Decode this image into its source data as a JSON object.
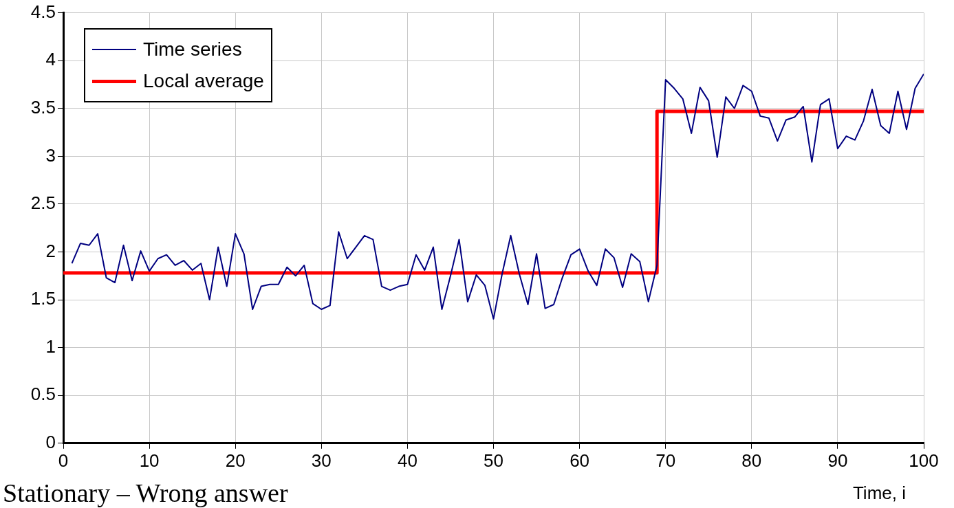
{
  "chart_data": {
    "type": "line",
    "xlabel": "Time, i",
    "annotations": [
      "Stationary – Wrong answer"
    ],
    "xlim": [
      0,
      100
    ],
    "xticks": [
      0,
      10,
      20,
      30,
      40,
      50,
      60,
      70,
      80,
      90,
      100
    ],
    "ylim": [
      0,
      4.5
    ],
    "yticks": [
      0,
      0.5,
      1,
      1.5,
      2,
      2.5,
      3,
      3.5,
      4,
      4.5
    ],
    "grid": true,
    "legend": "top left",
    "marker": "none",
    "line_style": "solid",
    "series": [
      {
        "name": "Time series",
        "color": "#000080",
        "type": "line",
        "x": [
          1,
          2,
          3,
          4,
          5,
          6,
          7,
          8,
          9,
          10,
          11,
          12,
          13,
          14,
          15,
          16,
          17,
          18,
          19,
          20,
          21,
          22,
          23,
          24,
          25,
          26,
          27,
          28,
          29,
          30,
          31,
          32,
          33,
          34,
          35,
          36,
          37,
          38,
          39,
          40,
          41,
          42,
          43,
          44,
          45,
          46,
          47,
          48,
          49,
          50,
          51,
          52,
          53,
          54,
          55,
          56,
          57,
          58,
          59,
          60,
          61,
          62,
          63,
          64,
          65,
          66,
          67,
          68,
          69,
          70,
          71,
          72,
          73,
          74,
          75,
          76,
          77,
          78,
          79,
          80,
          81,
          82,
          83,
          84,
          85,
          86,
          87,
          88,
          89,
          90,
          91,
          92,
          93,
          94,
          95,
          96,
          97,
          98,
          99,
          100
        ],
        "values": [
          1.88,
          2.09,
          2.07,
          2.19,
          1.73,
          1.68,
          2.07,
          1.7,
          2.01,
          1.8,
          1.93,
          1.97,
          1.86,
          1.91,
          1.81,
          1.88,
          1.5,
          2.05,
          1.64,
          2.19,
          1.98,
          1.4,
          1.64,
          1.66,
          1.66,
          1.84,
          1.75,
          1.86,
          1.46,
          1.4,
          1.44,
          2.21,
          1.93,
          2.05,
          2.17,
          2.13,
          1.64,
          1.6,
          1.64,
          1.66,
          1.97,
          1.81,
          2.05,
          1.4,
          1.75,
          2.13,
          1.48,
          1.76,
          1.65,
          1.3,
          1.77,
          2.17,
          1.77,
          1.45,
          1.98,
          1.41,
          1.45,
          1.73,
          1.97,
          2.03,
          1.8,
          1.65,
          2.03,
          1.94,
          1.63,
          1.98,
          1.9,
          1.48,
          1.86,
          3.8,
          3.71,
          3.6,
          3.24,
          3.72,
          3.58,
          2.99,
          3.62,
          3.5,
          3.74,
          3.68,
          3.42,
          3.4,
          3.16,
          3.38,
          3.41,
          3.52,
          2.94,
          3.54,
          3.6,
          3.08,
          3.21,
          3.17,
          3.37,
          3.7,
          3.32,
          3.24,
          3.68,
          3.28,
          3.71,
          3.86
        ]
      },
      {
        "name": "Local average",
        "color": "#ff0000",
        "type": "step",
        "x": [
          0,
          69,
          100
        ],
        "values": [
          1.78,
          3.47,
          3.47
        ]
      }
    ]
  }
}
